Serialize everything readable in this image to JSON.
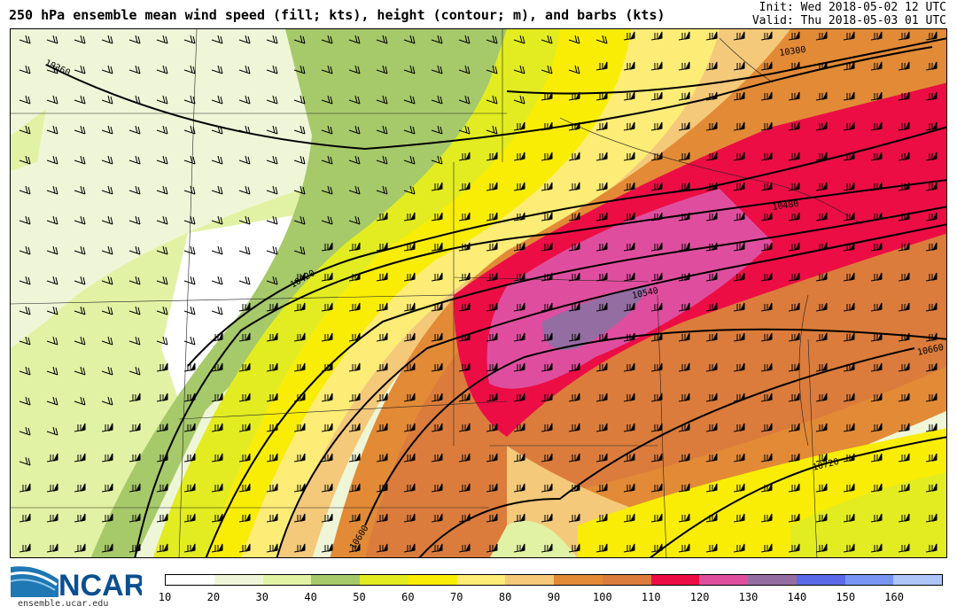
{
  "header": {
    "title": "250 hPa ensemble mean wind speed (fill; kts), height (contour; m), and barbs (kts)",
    "init": "Init: Wed 2018-05-02 12 UTC",
    "valid": "Valid: Thu 2018-05-03 01 UTC"
  },
  "map": {
    "contour_labels": [
      "10360",
      "10300",
      "10420",
      "10480",
      "10540",
      "10600",
      "10660",
      "10720"
    ]
  },
  "colorbar": {
    "labels": [
      "10",
      "20",
      "30",
      "40",
      "50",
      "60",
      "70",
      "80",
      "90",
      "100",
      "110",
      "120",
      "130",
      "140",
      "150",
      "160"
    ],
    "colors": [
      "#ffffff",
      "#eff6d8",
      "#e2f2a4",
      "#a6c96a",
      "#e2ec21",
      "#f9ed05",
      "#fdec76",
      "#f4c97a",
      "#e28a36",
      "#db7c3c",
      "#ec0d44",
      "#df4e9e",
      "#946da2",
      "#5b6ae8",
      "#7895f2",
      "#aec5f7"
    ]
  },
  "branding": {
    "logo_text": "NCAR",
    "url": "ensemble.ucar.edu"
  }
}
